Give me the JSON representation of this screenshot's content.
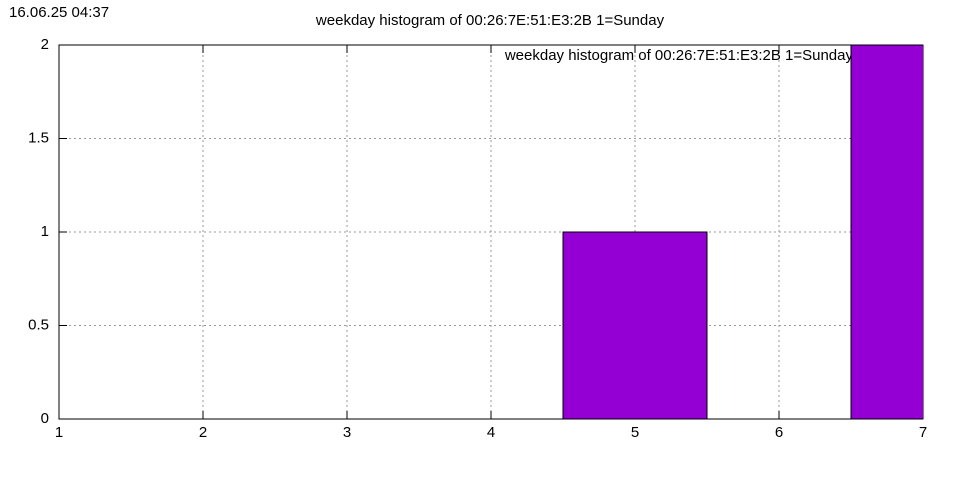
{
  "timestamp": "16.06.25 04:37",
  "chart_data": {
    "type": "bar",
    "title": "weekday histogram of 00:26:7E:51:E3:2B 1=Sunday",
    "x": [
      5,
      7
    ],
    "series": [
      {
        "name": "weekday histogram of 00:26:7E:51:E3:2B 1=Sunday",
        "color": "#9400d3",
        "values": [
          1,
          2
        ]
      }
    ],
    "box_width": 1,
    "xlim": [
      1,
      7
    ],
    "xticks": [
      1,
      2,
      3,
      4,
      5,
      6,
      7
    ],
    "ylim": [
      0,
      2
    ],
    "yticks": [
      0,
      0.5,
      1,
      1.5,
      2
    ],
    "grid": true,
    "legend": "top-right"
  }
}
